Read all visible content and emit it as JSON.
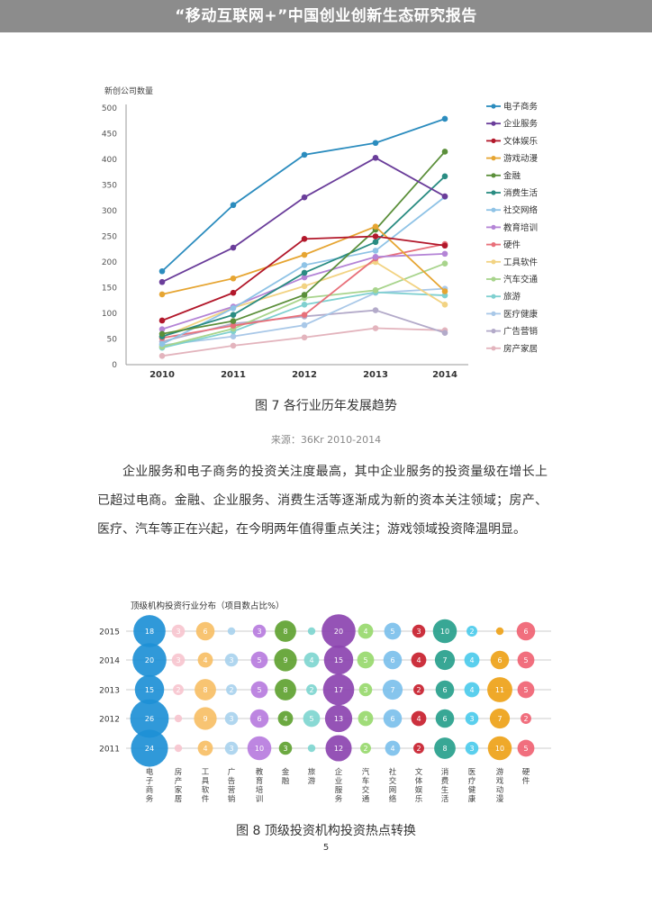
{
  "header": {
    "title": "“移动互联网+”中国创业创新生态研究报告"
  },
  "figure7": {
    "caption": "图 7  各行业历年发展趋势",
    "source": "来源：36Kr 2010-2014"
  },
  "paragraph": {
    "text": "企业服务和电子商务的投资关注度最高，其中企业服务的投资量级在增长上已超过电商。金融、企业服务、消费生活等逐渐成为新的资本关注领域；房产、医疗、汽车等正在兴起，在今明两年值得重点关注；游戏领域投资降温明显。"
  },
  "figure8": {
    "caption": "图 8  顶级投资机构投资热点转换"
  },
  "page": {
    "number": "5"
  },
  "chart_data": [
    {
      "type": "line",
      "title": "",
      "ylabel": "新创公司数量",
      "xlabel": "",
      "ylim": [
        0,
        500
      ],
      "yticks": [
        0,
        50,
        100,
        150,
        200,
        250,
        300,
        350,
        400,
        450,
        500
      ],
      "x": [
        "2010",
        "2011",
        "2012",
        "2013",
        "2014"
      ],
      "grid": false,
      "legend_position": "right",
      "series": [
        {
          "name": "电子商务",
          "color": "#2b8cbe",
          "values": [
            182,
            311,
            409,
            432,
            479
          ]
        },
        {
          "name": "企业服务",
          "color": "#6a3d9a",
          "values": [
            161,
            228,
            326,
            403,
            328
          ]
        },
        {
          "name": "文体娱乐",
          "color": "#b2182b",
          "values": [
            86,
            140,
            245,
            250,
            232
          ]
        },
        {
          "name": "游戏动漫",
          "color": "#e6a532",
          "values": [
            137,
            168,
            214,
            269,
            143
          ]
        },
        {
          "name": "金融",
          "color": "#5b8f3a",
          "values": [
            60,
            85,
            136,
            263,
            415
          ]
        },
        {
          "name": "消费生活",
          "color": "#2a8c82",
          "values": [
            55,
            97,
            179,
            239,
            367
          ]
        },
        {
          "name": "社交网络",
          "color": "#8fc3e6",
          "values": [
            40,
            110,
            194,
            222,
            327
          ]
        },
        {
          "name": "教育培训",
          "color": "#b484d6",
          "values": [
            69,
            113,
            170,
            210,
            216
          ]
        },
        {
          "name": "硬件",
          "color": "#e8707a",
          "values": [
            52,
            76,
            97,
            207,
            235
          ]
        },
        {
          "name": "工具软件",
          "color": "#f2d383",
          "values": [
            54,
            111,
            153,
            200,
            117
          ]
        },
        {
          "name": "汽车交通",
          "color": "#a8d48c",
          "values": [
            35,
            70,
            130,
            145,
            197
          ]
        },
        {
          "name": "旅游",
          "color": "#7fd0d0",
          "values": [
            33,
            65,
            117,
            141,
            135
          ]
        },
        {
          "name": "医疗健康",
          "color": "#a9c8e8",
          "values": [
            38,
            55,
            77,
            140,
            148
          ]
        },
        {
          "name": "广告营销",
          "color": "#b3aac9",
          "values": [
            45,
            80,
            94,
            106,
            62
          ]
        },
        {
          "name": "房产家居",
          "color": "#e3b4bd",
          "values": [
            17,
            37,
            53,
            71,
            67
          ]
        }
      ]
    },
    {
      "type": "scatter",
      "subtype": "bubble",
      "title": "顶级机构投资行业分布（项目数占比%）",
      "xlabel": "",
      "ylabel": "",
      "rows": [
        "2015",
        "2014",
        "2013",
        "2012",
        "2011"
      ],
      "categories": [
        "电子商务",
        "房产家居",
        "工具软件",
        "广告营销",
        "教育培训",
        "金融",
        "旅游",
        "企业服务",
        "汽车交通",
        "社交网络",
        "文体娱乐",
        "消费生活",
        "医疗健康",
        "游戏动漫",
        "硬件"
      ],
      "colors": [
        "#1e90d6",
        "#f7c6cf",
        "#f7bf66",
        "#a9d3ee",
        "#b77cde",
        "#5fa231",
        "#7fd6d0",
        "#8c44b0",
        "#98d96e",
        "#7cc0ec",
        "#c8202e",
        "#27a08c",
        "#4ccbec",
        "#eea218",
        "#f06373"
      ],
      "values": {
        "2015": [
          18,
          3,
          6,
          1,
          3,
          8,
          1,
          20,
          4,
          5,
          3,
          10,
          2,
          1,
          6
        ],
        "2014": [
          20,
          3,
          4,
          3,
          5,
          9,
          4,
          15,
          5,
          6,
          4,
          7,
          4,
          6,
          5
        ],
        "2013": [
          15,
          2,
          8,
          2,
          5,
          8,
          2,
          17,
          3,
          7,
          2,
          6,
          4,
          11,
          5
        ],
        "2012": [
          26,
          1,
          9,
          3,
          6,
          4,
          5,
          13,
          4,
          6,
          4,
          6,
          3,
          7,
          2
        ],
        "2011": [
          24,
          1,
          4,
          3,
          10,
          3,
          1,
          12,
          2,
          4,
          2,
          8,
          3,
          10,
          5
        ]
      }
    }
  ]
}
